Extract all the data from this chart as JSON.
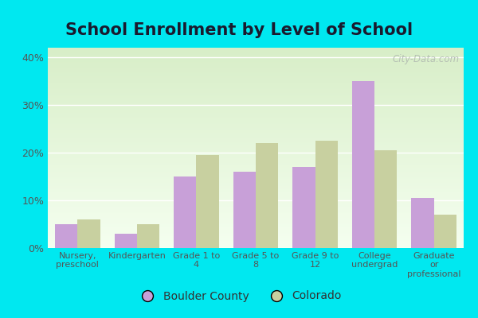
{
  "title": "School Enrollment by Level of School",
  "categories": [
    "Nursery,\npreschool",
    "Kindergarten",
    "Grade 1 to\n4",
    "Grade 5 to\n8",
    "Grade 9 to\n12",
    "College\nundergrad",
    "Graduate\nor\nprofessional"
  ],
  "boulder_county": [
    5.0,
    3.0,
    15.0,
    16.0,
    17.0,
    35.0,
    10.5
  ],
  "colorado": [
    6.0,
    5.0,
    19.5,
    22.0,
    22.5,
    20.5,
    7.0
  ],
  "boulder_color": "#c8a0d8",
  "colorado_color": "#c8d0a0",
  "ylim": [
    0,
    42
  ],
  "yticks": [
    0,
    10,
    20,
    30,
    40
  ],
  "ytick_labels": [
    "0%",
    "10%",
    "20%",
    "30%",
    "40%"
  ],
  "title_fontsize": 15,
  "legend_labels": [
    "Boulder County",
    "Colorado"
  ],
  "bar_width": 0.38,
  "outer_bg": "#00e8f0",
  "plot_bg_top": "#d8eec8",
  "plot_bg_bottom": "#f0fff0",
  "border_color": "#ffffff",
  "watermark": "City-Data.com",
  "tick_color": "#555555",
  "tick_fontsize": 9,
  "label_fontsize": 8
}
